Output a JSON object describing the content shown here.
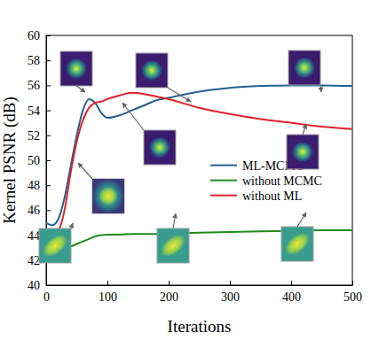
{
  "chart_data": {
    "type": "line",
    "x_label": "Iterations",
    "y_label": "Kernel PSNR (dB)",
    "x": [
      0,
      10,
      20,
      30,
      40,
      50,
      60,
      70,
      80,
      90,
      100,
      120,
      140,
      160,
      180,
      200,
      250,
      300,
      350,
      400,
      450,
      500
    ],
    "series": [
      {
        "name": "ML-MCMC",
        "color": "#22618f",
        "values": [
          45.0,
          44.8,
          45.3,
          47.0,
          49.5,
          52.0,
          54.0,
          54.9,
          54.6,
          53.8,
          53.4,
          53.6,
          54.0,
          54.4,
          54.8,
          55.0,
          55.5,
          55.8,
          55.95,
          56.0,
          56.0,
          55.95
        ]
      },
      {
        "name": "without MCMC",
        "color": "#1e8c1e",
        "values": [
          42.9,
          42.9,
          42.95,
          43.0,
          43.1,
          43.3,
          43.5,
          43.7,
          43.9,
          44.0,
          44.05,
          44.05,
          44.1,
          44.1,
          44.1,
          44.15,
          44.2,
          44.25,
          44.3,
          44.35,
          44.4,
          44.4
        ]
      },
      {
        "name": "without ML",
        "color": "#e0202a",
        "values": [
          44.4,
          44.1,
          44.4,
          46.0,
          49.0,
          51.5,
          53.2,
          54.2,
          54.6,
          54.7,
          54.9,
          55.2,
          55.4,
          55.3,
          55.1,
          54.9,
          54.2,
          53.7,
          53.3,
          53.0,
          52.7,
          52.5
        ]
      }
    ],
    "xlim": [
      0,
      500
    ],
    "xticks": [
      0,
      100,
      200,
      300,
      400,
      500
    ],
    "ylim": [
      40,
      60
    ],
    "yticks": [
      40,
      42,
      44,
      46,
      48,
      50,
      52,
      54,
      56,
      58,
      60
    ],
    "grid": false,
    "legend": "right"
  }
}
